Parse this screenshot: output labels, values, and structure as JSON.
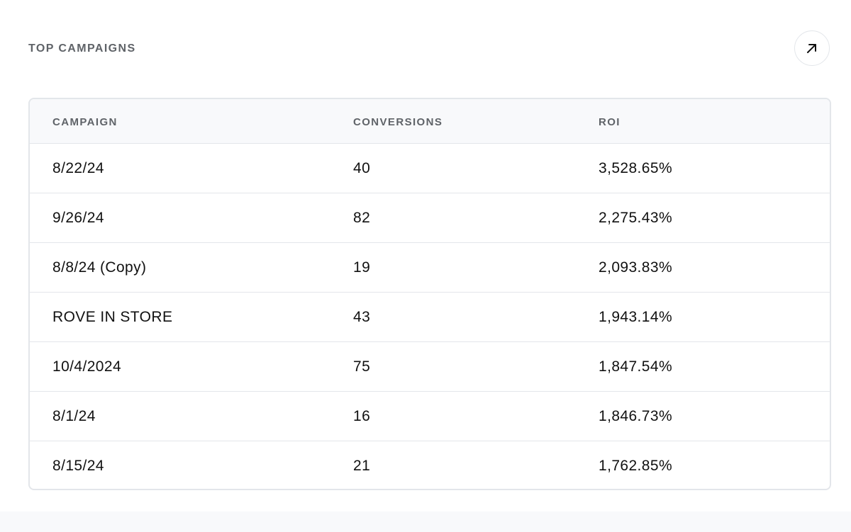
{
  "header": {
    "title": "TOP CAMPAIGNS",
    "expand_icon": "arrow-up-right-icon"
  },
  "table": {
    "columns": [
      "CAMPAIGN",
      "CONVERSIONS",
      "ROI"
    ],
    "rows": [
      {
        "campaign": "8/22/24",
        "conversions": "40",
        "roi": "3,528.65%"
      },
      {
        "campaign": "9/26/24",
        "conversions": "82",
        "roi": "2,275.43%"
      },
      {
        "campaign": "8/8/24 (Copy)",
        "conversions": "19",
        "roi": "2,093.83%"
      },
      {
        "campaign": "ROVE IN STORE",
        "conversions": "43",
        "roi": "1,943.14%"
      },
      {
        "campaign": "10/4/2024",
        "conversions": "75",
        "roi": "1,847.54%"
      },
      {
        "campaign": "8/1/24",
        "conversions": "16",
        "roi": "1,846.73%"
      },
      {
        "campaign": "8/15/24",
        "conversions": "21",
        "roi": "1,762.85%"
      }
    ]
  }
}
